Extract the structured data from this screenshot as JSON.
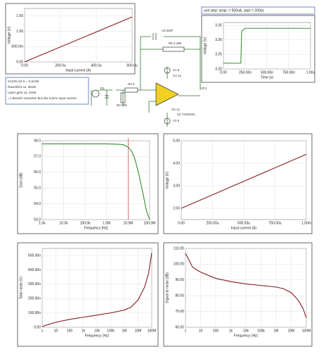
{
  "chart_data": [
    {
      "type": "line",
      "xlabel": "Input current (A)",
      "ylabel": "Voltage (V)",
      "x": [
        0,
        0.0006
      ],
      "series": [
        {
          "color": "#8b1a1a",
          "values": [
            0,
            1.47
          ]
        }
      ],
      "xlim": [
        0,
        0.0006
      ],
      "ylim": [
        0,
        1.75
      ],
      "xticks": [
        {
          "value": 0,
          "label": "0.00"
        },
        {
          "value": 0.0002,
          "label": "200.0u"
        },
        {
          "value": 0.0004,
          "label": "400.0u"
        },
        {
          "value": 0.0006,
          "label": "600.0u"
        }
      ],
      "yticks": [
        {
          "value": 0,
          "label": "0.00"
        },
        {
          "value": 0.5,
          "label": "500.0m"
        },
        {
          "value": 1,
          "label": "1.00"
        },
        {
          "value": 1.5,
          "label": "1.50"
        }
      ],
      "grid": true
    },
    {
      "type": "line",
      "title": "unit step: ampl. = 500nA, start = 200ns",
      "xlabel": "Time (s)",
      "ylabel": "Voltage (V)",
      "x": [
        0,
        2e-07,
        2.1e-07,
        2.5e-07,
        1e-06
      ],
      "series": [
        {
          "color": "#3a8a3a",
          "values": [
            3.22,
            3.22,
            3.33,
            3.34,
            3.34
          ]
        }
      ],
      "xlim": [
        0,
        1e-06
      ],
      "ylim": [
        3.2,
        3.36
      ],
      "xticks": [
        {
          "value": 0,
          "label": "0.00"
        },
        {
          "value": 2.5e-07,
          "label": "250.00n"
        },
        {
          "value": 5e-07,
          "label": "500.00n"
        },
        {
          "value": 7.5e-07,
          "label": "750.00n"
        },
        {
          "value": 1e-06,
          "label": "1.00u"
        }
      ],
      "yticks": [
        {
          "value": 3.2,
          "label": "3.20"
        },
        {
          "value": 3.25,
          "label": "3.25"
        },
        {
          "value": 3.3,
          "label": "3.30"
        },
        {
          "value": 3.35,
          "label": "3.35"
        }
      ],
      "grid": true
    },
    {
      "type": "line",
      "xlabel": "Frequency [Hz]",
      "ylabel": "Gain (dB)",
      "xlog": true,
      "x": [
        1000,
        10000,
        100000,
        1000000,
        3000000,
        6000000,
        10000000,
        15000000,
        20000000,
        30000000,
        50000000,
        70000000,
        100000000
      ],
      "series": [
        {
          "color": "#2f8f2f",
          "values": [
            57.8,
            57.8,
            57.8,
            57.8,
            57.78,
            57.75,
            57.6,
            57.3,
            56.9,
            56.0,
            54.6,
            53.6,
            53.0
          ]
        }
      ],
      "cursor_x": 10000000,
      "cursor_color": "#d04040",
      "xlim": [
        1000,
        100000000
      ],
      "ylim": [
        53,
        58
      ],
      "xticks": [
        {
          "value": 1000,
          "label": "1.0k"
        },
        {
          "value": 10000,
          "label": "10.0k"
        },
        {
          "value": 100000,
          "label": "100.0k"
        },
        {
          "value": 1000000,
          "label": "1.0M"
        },
        {
          "value": 10000000,
          "label": "10.0M"
        },
        {
          "value": 100000000,
          "label": "100.0M"
        }
      ],
      "yticks": [
        {
          "value": 53,
          "label": "53.0"
        },
        {
          "value": 54,
          "label": "54.0"
        },
        {
          "value": 55,
          "label": "55.0"
        },
        {
          "value": 56,
          "label": "56.0"
        },
        {
          "value": 57,
          "label": "57.0"
        },
        {
          "value": 58,
          "label": "58.0"
        }
      ],
      "grid": true
    },
    {
      "type": "line",
      "xlabel": "Input current (A)",
      "ylabel": "Voltage (V)",
      "x": [
        0,
        0.001
      ],
      "series": [
        {
          "color": "#8b1a1a",
          "values": [
            2.0,
            4.4
          ]
        }
      ],
      "xlim": [
        0,
        0.001
      ],
      "ylim": [
        1.5,
        5
      ],
      "xticks": [
        {
          "value": 0,
          "label": "0.00"
        },
        {
          "value": 0.00025,
          "label": "250.00u"
        },
        {
          "value": 0.0005,
          "label": "500.00u"
        },
        {
          "value": 0.00075,
          "label": "750.00u"
        },
        {
          "value": 0.001,
          "label": "1.00m"
        }
      ],
      "yticks": [
        {
          "value": 2,
          "label": "2.00"
        },
        {
          "value": 3,
          "label": "3.00"
        },
        {
          "value": 4,
          "label": "4.00"
        },
        {
          "value": 5,
          "label": "5.00"
        }
      ],
      "grid": true
    },
    {
      "type": "line",
      "xlabel": "Frequency (Hz)",
      "ylabel": "Total noise (V)",
      "xlog": true,
      "x": [
        1,
        3,
        10,
        100,
        1000,
        10000,
        100000,
        1000000,
        3000000,
        10000000,
        30000000,
        60000000,
        100000000
      ],
      "series": [
        {
          "color": "#8b1a1a",
          "values": [
            5e-09,
            2e-08,
            3.5e-08,
            5.5e-08,
            7e-08,
            8.5e-08,
            1e-07,
            1.2e-07,
            1.4e-07,
            1.9e-07,
            2.8e-07,
            3.8e-07,
            5.2e-07
          ]
        }
      ],
      "xlim": [
        1,
        100000000
      ],
      "ylim": [
        0,
        5.5e-07
      ],
      "xticks": [
        1,
        10,
        100,
        {
          "value": 1000,
          "label": "1k"
        },
        {
          "value": 10000,
          "label": "10k"
        },
        {
          "value": 100000,
          "label": "100k"
        },
        {
          "value": 1000000,
          "label": "1M"
        },
        {
          "value": 10000000,
          "label": "10M"
        },
        {
          "value": 100000000,
          "label": "100M"
        }
      ],
      "yticks": [
        {
          "value": 0,
          "label": "0.00"
        },
        {
          "value": 1e-07,
          "label": "100.00n"
        },
        {
          "value": 2e-07,
          "label": "200.00n"
        },
        {
          "value": 3e-07,
          "label": "300.00n"
        },
        {
          "value": 4e-07,
          "label": "400.00n"
        },
        {
          "value": 5e-07,
          "label": "500.00n"
        }
      ],
      "grid": true
    },
    {
      "type": "line",
      "xlabel": "Frequency (Hz)",
      "ylabel": "Signal to noise (dB)",
      "xlog": true,
      "x": [
        1,
        3,
        10,
        100,
        1000,
        10000,
        100000,
        1000000,
        3000000,
        10000000,
        30000000,
        60000000,
        100000000
      ],
      "series": [
        {
          "color": "#8b1a1a",
          "values": [
            107,
            98,
            95,
            91,
            89,
            87.5,
            86.5,
            85.5,
            84.5,
            82,
            77,
            72,
            66
          ]
        }
      ],
      "xlim": [
        1,
        100000000
      ],
      "ylim": [
        60,
        110
      ],
      "xticks": [
        1,
        10,
        100,
        {
          "value": 1000,
          "label": "1k"
        },
        {
          "value": 10000,
          "label": "10k"
        },
        {
          "value": 100000,
          "label": "100k"
        },
        {
          "value": 1000000,
          "label": "1M"
        },
        {
          "value": 10000000,
          "label": "10M"
        },
        {
          "value": 100000000,
          "label": "100M"
        }
      ],
      "yticks": [
        {
          "value": 60,
          "label": "60.00"
        },
        {
          "value": 70,
          "label": "70.00"
        },
        {
          "value": 80,
          "label": "80.00"
        },
        {
          "value": 90,
          "label": "90.00"
        },
        {
          "value": 100,
          "label": "100.00"
        },
        {
          "value": 110,
          "label": "110.00"
        }
      ],
      "grid": true
    }
  ],
  "schematic": {
    "note": [
      "S1226 mit S = 0,3A/W",
      "Raumlicht ca. 30uW",
      "Laser grün ca. 2mW",
      "=> Bereich zwischen 9uA bis 0,6mA input current"
    ],
    "labels": [
      "C5 500f",
      "R5 2.49k",
      "V1 5",
      "C4 1u",
      "R3 0",
      "VF1",
      "C6 1u",
      "U2 THS3201",
      "V2 5",
      "D1",
      "R4 500"
    ]
  }
}
